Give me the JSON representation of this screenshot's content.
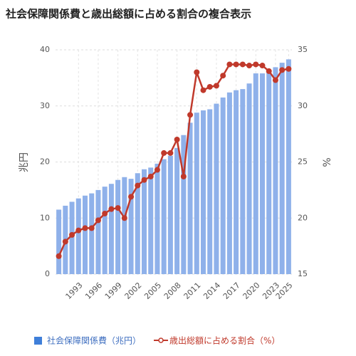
{
  "chart_data": {
    "type": "bar_line",
    "title": "社会保障関係費と歳出総額に占める割合の複合表示",
    "y_label": "兆円",
    "y2_label": "%",
    "categories": [
      null,
      null,
      null,
      "1993",
      null,
      null,
      "1996",
      null,
      null,
      "1999",
      null,
      null,
      "2002",
      null,
      null,
      "2005",
      null,
      null,
      "2008",
      null,
      null,
      "2011",
      null,
      null,
      "2014",
      null,
      null,
      "2017",
      null,
      null,
      "2020",
      null,
      null,
      "2023",
      null,
      "2025"
    ],
    "series": [
      {
        "name": "社会保障関係費（兆円）",
        "type": "bar",
        "color": "#8fb1ea",
        "values": [
          11.5,
          12.2,
          12.9,
          13.5,
          14.0,
          14.4,
          15.0,
          15.6,
          16.1,
          16.8,
          17.3,
          17.0,
          18.0,
          18.7,
          19.0,
          19.7,
          20.5,
          21.1,
          22.5,
          24.8,
          27.0,
          28.8,
          29.2,
          29.4,
          30.4,
          31.5,
          32.4,
          32.8,
          33.0,
          34.0,
          35.8,
          35.8,
          36.3,
          36.9,
          37.7,
          38.3
        ]
      },
      {
        "name": "歳出総額に占める割合（%）",
        "type": "line",
        "axis": "y2",
        "color": "#c0392b",
        "values": [
          16.6,
          17.9,
          18.5,
          18.9,
          19.1,
          19.1,
          19.8,
          20.4,
          20.8,
          20.9,
          20.0,
          21.9,
          22.9,
          23.4,
          23.7,
          24.3,
          25.8,
          25.8,
          27.0,
          23.7,
          29.2,
          33.0,
          31.4,
          31.7,
          31.8,
          32.7,
          33.7,
          33.7,
          33.7,
          33.6,
          33.7,
          33.6,
          33.1,
          32.3,
          33.2,
          33.3
        ]
      }
    ],
    "ylim": [
      0,
      40
    ],
    "yticks": [
      0,
      10,
      20,
      30,
      40
    ],
    "y2lim": [
      15,
      35
    ],
    "y2ticks": [
      15,
      20,
      25,
      30,
      35
    ],
    "grid": true
  }
}
